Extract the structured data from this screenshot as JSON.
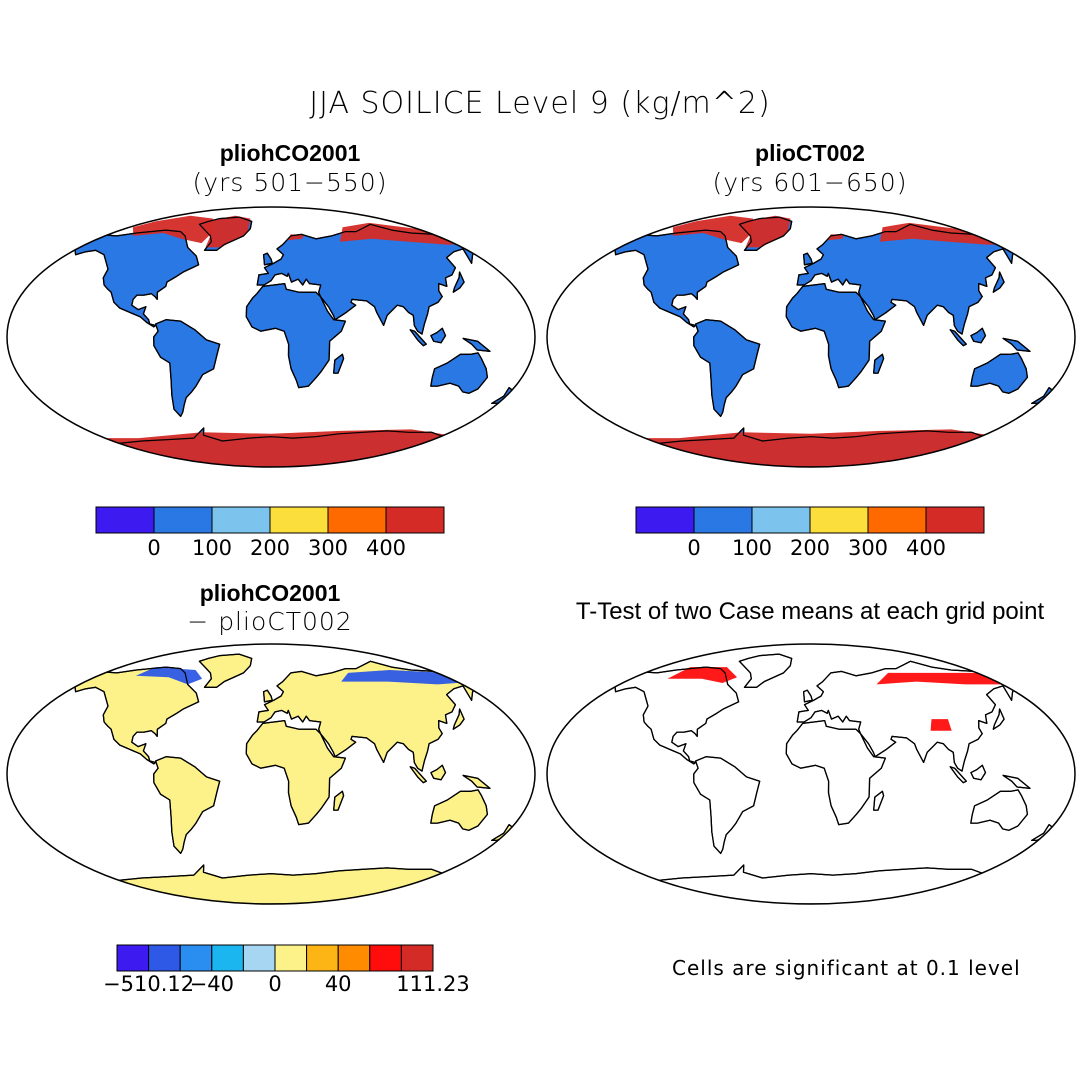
{
  "figure": {
    "title": "JJA SOILICE Level 9 (kg/m^2)"
  },
  "panels": {
    "top_left": {
      "title": "pliohCO2001",
      "subtitle": "(yrs 501−550)"
    },
    "top_right": {
      "title": "plioCT002",
      "subtitle": "(yrs 601−650)"
    },
    "bottom_left": {
      "title": "pliohCO2001",
      "subtitle": "− plioCT002"
    },
    "bottom_right": {
      "title": "T-Test of two Case means at each grid point",
      "note": "Cells are significant at 0.1 level"
    }
  },
  "colorbars": {
    "absolute": {
      "colors": [
        "#3d1af0",
        "#2a78e4",
        "#7cc4ee",
        "#fbde3c",
        "#ff6a00",
        "#d42b26"
      ],
      "ticks": [
        "0",
        "100",
        "200",
        "300",
        "400"
      ]
    },
    "difference": {
      "colors": [
        "#3d1af0",
        "#2d59e6",
        "#2a8ef0",
        "#1bb6f0",
        "#a6d6f2",
        "#fdf18a",
        "#fdb516",
        "#ff8c00",
        "#ff0d0d",
        "#d42b26"
      ],
      "ticks": [
        "−510.12",
        "−40",
        "0",
        "40",
        "111.23"
      ]
    }
  },
  "colors": {
    "land_absolute": "#2a78e4",
    "land_difference": "#fdf18a",
    "ice_high": "#d42b26",
    "significant": "#ff0d0d",
    "coast": "#000000"
  }
}
